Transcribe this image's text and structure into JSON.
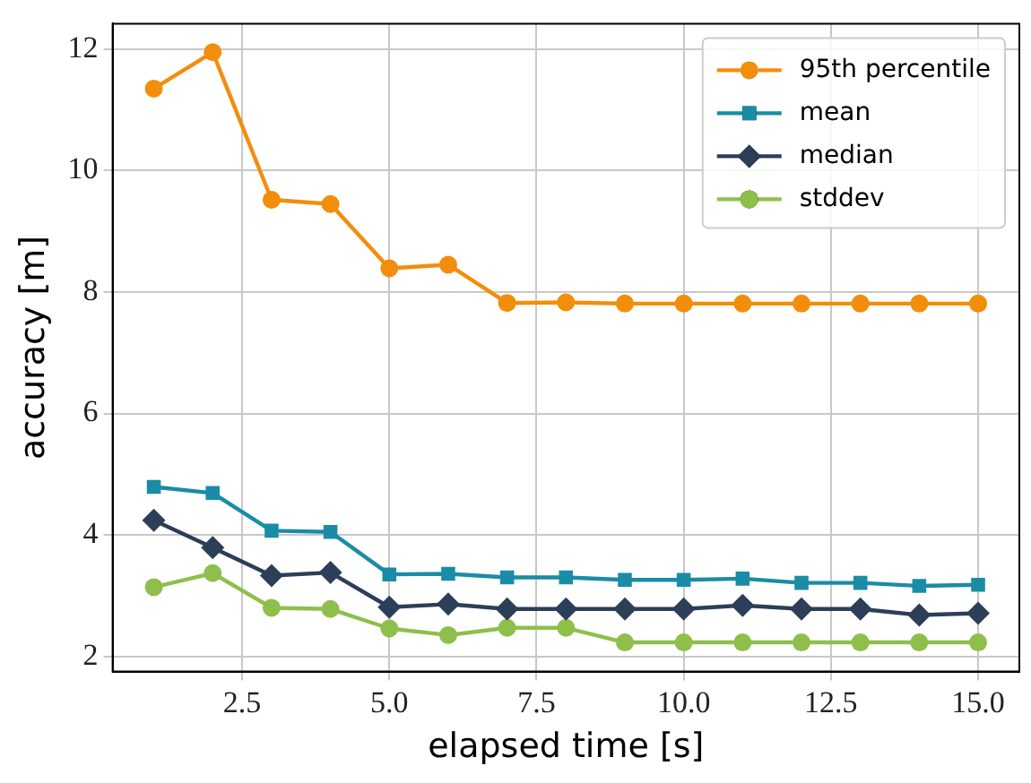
{
  "chart_data": {
    "type": "line",
    "xlabel": "elapsed time [s]",
    "ylabel": "accuracy [m]",
    "x": [
      1,
      2,
      3,
      4,
      5,
      6,
      7,
      8,
      9,
      10,
      11,
      12,
      13,
      14,
      15
    ],
    "xlim": [
      0.3,
      15.7
    ],
    "xticks": [
      {
        "value": 2.5,
        "label": "2.5"
      },
      {
        "value": 5,
        "label": "5.0"
      },
      {
        "value": 7.5,
        "label": "7.5"
      },
      {
        "value": 10,
        "label": "10.0"
      },
      {
        "value": 12.5,
        "label": "12.5"
      },
      {
        "value": 15,
        "label": "15.0"
      }
    ],
    "ylim": [
      1.75,
      12.42
    ],
    "yticks": [
      2,
      4,
      6,
      8,
      10,
      12
    ],
    "grid": true,
    "legend": "top right",
    "line_style": "solid",
    "series": [
      {
        "name": "95th percentile",
        "color": "#f28e0c",
        "marker": "circle",
        "values": [
          11.35,
          11.95,
          9.52,
          9.45,
          8.39,
          8.45,
          7.82,
          7.83,
          7.81,
          7.81,
          7.81,
          7.81,
          7.81,
          7.81,
          7.81
        ]
      },
      {
        "name": "mean",
        "color": "#1a8ca6",
        "marker": "square",
        "values": [
          4.79,
          4.69,
          4.07,
          4.05,
          3.35,
          3.36,
          3.3,
          3.3,
          3.26,
          3.26,
          3.28,
          3.21,
          3.21,
          3.16,
          3.18
        ]
      },
      {
        "name": "median",
        "color": "#2c3e58",
        "marker": "diamond",
        "values": [
          4.24,
          3.79,
          3.33,
          3.38,
          2.81,
          2.86,
          2.78,
          2.78,
          2.78,
          2.78,
          2.84,
          2.78,
          2.78,
          2.68,
          2.71
        ]
      },
      {
        "name": "stddev",
        "color": "#8fbf4b",
        "marker": "circle",
        "values": [
          3.14,
          3.37,
          2.8,
          2.78,
          2.46,
          2.35,
          2.47,
          2.47,
          2.23,
          2.23,
          2.23,
          2.23,
          2.23,
          2.23,
          2.23
        ]
      }
    ]
  }
}
